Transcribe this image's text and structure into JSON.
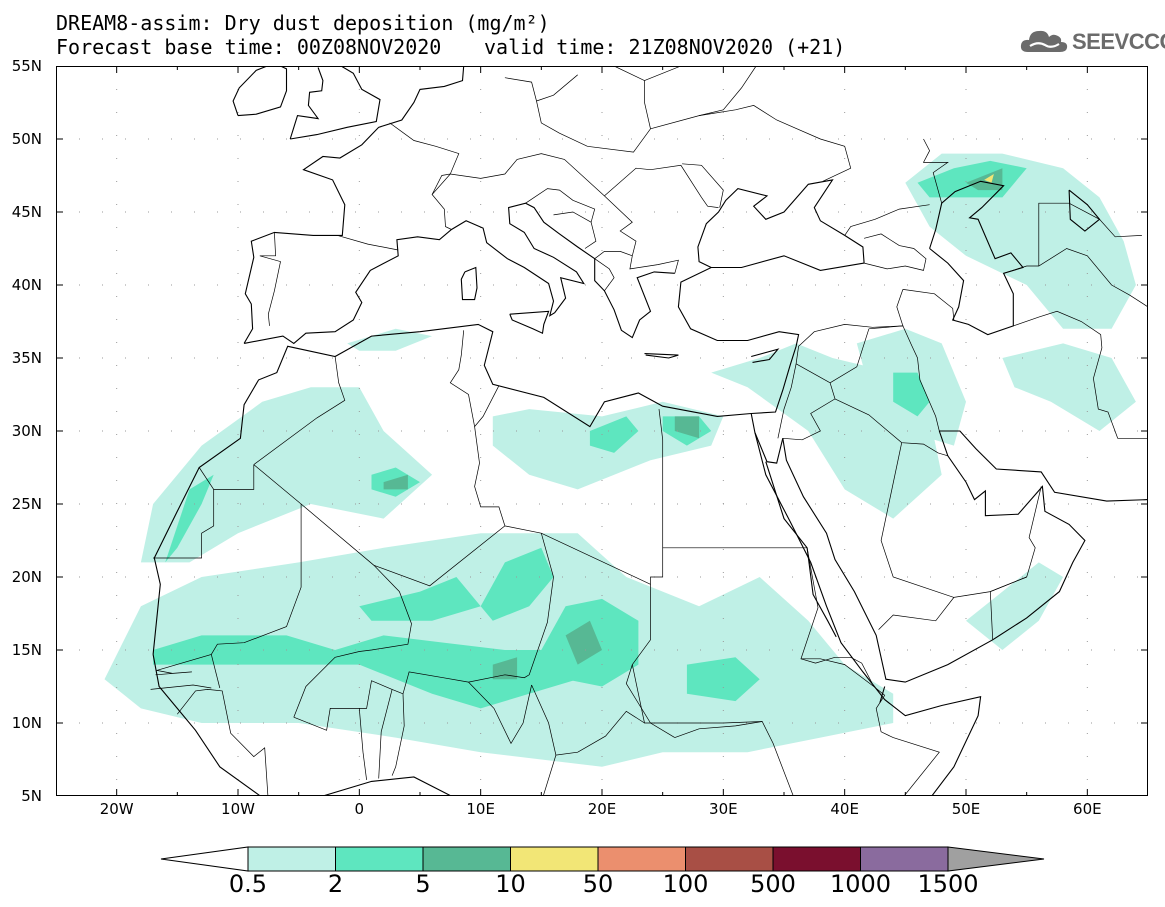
{
  "header": {
    "title_line1": "DREAM8-assim: Dry dust deposition (mg/m²)",
    "title_line2": "Forecast base time: 00Z08NOV2020",
    "title_line2_right": "valid time: 21Z08NOV2020 (+21)"
  },
  "logo": {
    "text": "SEEVCCC",
    "icon": "cloud-icon"
  },
  "map": {
    "projection": "lat-lon",
    "lon_range": [
      -25,
      65
    ],
    "lat_range": [
      5,
      55
    ],
    "lat_labels": [
      "55N",
      "50N",
      "45N",
      "40N",
      "35N",
      "30N",
      "25N",
      "20N",
      "15N",
      "10N",
      "5N"
    ],
    "lon_labels": [
      "20W",
      "10W",
      "0",
      "10E",
      "20E",
      "30E",
      "40E",
      "50E",
      "60E"
    ],
    "background": "#ffffff",
    "coastline_color": "#000000",
    "gridline_style": "dotted"
  },
  "colorbar": {
    "labels": [
      "0.5",
      "2",
      "5",
      "10",
      "50",
      "100",
      "500",
      "1000",
      "1500"
    ],
    "colors": [
      "#bff0e6",
      "#5ee6bf",
      "#57b894",
      "#f2e676",
      "#eb8f6e",
      "#a84f45",
      "#7a0f2e",
      "#8a6b9e"
    ],
    "over_color": "#a0a0a0",
    "under_color": "#ffffff"
  },
  "chart_data": {
    "type": "heatmap",
    "title": "DREAM8-assim: Dry dust deposition (mg/m²)",
    "xlabel": "",
    "ylabel": "",
    "xlim": [
      -25,
      65
    ],
    "ylim": [
      5,
      55
    ],
    "levels": [
      0.5,
      2,
      5,
      10,
      50,
      100,
      500,
      1000,
      1500
    ],
    "regions": [
      {
        "level": 0.5,
        "lon_lat": [
          [
            -21,
            13
          ],
          [
            -18,
            18
          ],
          [
            -13,
            20
          ],
          [
            -5,
            21
          ],
          [
            2,
            22
          ],
          [
            10,
            23
          ],
          [
            18,
            23
          ],
          [
            22,
            20
          ],
          [
            28,
            18
          ],
          [
            33,
            20
          ],
          [
            37,
            17
          ],
          [
            40,
            14
          ],
          [
            44,
            12
          ],
          [
            44,
            10
          ],
          [
            38,
            9
          ],
          [
            32,
            8
          ],
          [
            25,
            8
          ],
          [
            20,
            7
          ],
          [
            10,
            8
          ],
          [
            3,
            9
          ],
          [
            -5,
            10
          ],
          [
            -13,
            10
          ],
          [
            -18,
            11
          ]
        ]
      },
      {
        "level": 0.5,
        "lon_lat": [
          [
            -18,
            21
          ],
          [
            -17,
            25
          ],
          [
            -13,
            29
          ],
          [
            -8,
            32
          ],
          [
            -4,
            33
          ],
          [
            0,
            33
          ],
          [
            2,
            30
          ],
          [
            6,
            27
          ],
          [
            2,
            24
          ],
          [
            -4,
            25
          ],
          [
            -10,
            23
          ],
          [
            -14,
            21
          ]
        ]
      },
      {
        "level": 0.5,
        "lon_lat": [
          [
            11,
            31
          ],
          [
            14,
            31.5
          ],
          [
            20,
            31
          ],
          [
            25,
            32
          ],
          [
            30,
            31
          ],
          [
            29,
            29
          ],
          [
            24,
            28
          ],
          [
            18,
            26
          ],
          [
            14,
            27
          ],
          [
            11,
            29
          ]
        ]
      },
      {
        "level": 0.5,
        "lon_lat": [
          [
            29,
            34
          ],
          [
            33,
            35
          ],
          [
            36,
            36
          ],
          [
            39,
            35
          ],
          [
            44,
            34
          ],
          [
            47,
            31
          ],
          [
            48,
            27
          ],
          [
            44,
            24
          ],
          [
            40,
            26
          ],
          [
            37,
            30
          ],
          [
            32,
            33
          ]
        ]
      },
      {
        "level": 0.5,
        "lon_lat": [
          [
            41,
            36
          ],
          [
            45,
            37
          ],
          [
            48,
            36
          ],
          [
            50,
            32
          ],
          [
            49,
            29
          ],
          [
            45,
            30
          ],
          [
            42,
            33
          ]
        ]
      },
      {
        "level": 0.5,
        "lon_lat": [
          [
            53,
            35
          ],
          [
            58,
            36
          ],
          [
            62,
            35
          ],
          [
            64,
            32
          ],
          [
            61,
            30
          ],
          [
            57,
            32
          ],
          [
            54,
            33
          ]
        ]
      },
      {
        "level": 0.5,
        "lon_lat": [
          [
            45,
            47
          ],
          [
            48,
            49
          ],
          [
            53,
            49
          ],
          [
            58,
            48
          ],
          [
            61,
            46
          ],
          [
            63,
            43
          ],
          [
            64,
            40
          ],
          [
            62,
            37
          ],
          [
            58,
            37
          ],
          [
            55,
            40
          ],
          [
            50,
            42
          ],
          [
            47,
            44
          ]
        ]
      },
      {
        "level": 0.5,
        "lon_lat": [
          [
            50,
            17
          ],
          [
            53,
            19
          ],
          [
            56,
            21
          ],
          [
            58,
            20
          ],
          [
            56,
            17
          ],
          [
            53,
            15
          ]
        ]
      },
      {
        "level": 0.5,
        "lon_lat": [
          [
            -1,
            36
          ],
          [
            3,
            37
          ],
          [
            6,
            36.5
          ],
          [
            3,
            35.5
          ],
          [
            0,
            35.5
          ]
        ]
      },
      {
        "level": 2,
        "lon_lat": [
          [
            -17,
            15
          ],
          [
            -13,
            16
          ],
          [
            -6,
            16
          ],
          [
            -2,
            15
          ],
          [
            2,
            16
          ],
          [
            7,
            15.5
          ],
          [
            12,
            15
          ],
          [
            16,
            15
          ],
          [
            18,
            13
          ],
          [
            14,
            12
          ],
          [
            10,
            11
          ],
          [
            6,
            12
          ],
          [
            0,
            14
          ],
          [
            -6,
            14
          ],
          [
            -12,
            14
          ],
          [
            -17,
            14
          ]
        ]
      },
      {
        "level": 2,
        "lon_lat": [
          [
            0,
            18
          ],
          [
            5,
            19
          ],
          [
            8,
            20
          ],
          [
            10,
            18
          ],
          [
            6,
            17
          ],
          [
            1,
            17
          ]
        ]
      },
      {
        "level": 2,
        "lon_lat": [
          [
            10,
            18
          ],
          [
            12,
            21
          ],
          [
            15,
            22
          ],
          [
            16,
            20
          ],
          [
            14,
            18
          ],
          [
            11,
            17
          ]
        ]
      },
      {
        "level": 2,
        "lon_lat": [
          [
            17,
            18
          ],
          [
            20,
            18.5
          ],
          [
            23,
            17
          ],
          [
            23,
            14
          ],
          [
            20,
            12.5
          ],
          [
            17,
            13
          ],
          [
            15,
            15
          ]
        ]
      },
      {
        "level": 2,
        "lon_lat": [
          [
            -16,
            21
          ],
          [
            -14,
            26
          ],
          [
            -12,
            27
          ],
          [
            -13,
            25
          ],
          [
            -15,
            22
          ]
        ]
      },
      {
        "level": 2,
        "lon_lat": [
          [
            1,
            27
          ],
          [
            3,
            27.5
          ],
          [
            5,
            26.5
          ],
          [
            3,
            25.5
          ],
          [
            1,
            26
          ]
        ]
      },
      {
        "level": 2,
        "lon_lat": [
          [
            19,
            30
          ],
          [
            22,
            31
          ],
          [
            23,
            30
          ],
          [
            21,
            28.5
          ],
          [
            19,
            29
          ]
        ]
      },
      {
        "level": 2,
        "lon_lat": [
          [
            25,
            31
          ],
          [
            28,
            31
          ],
          [
            29,
            30
          ],
          [
            27,
            29
          ],
          [
            25,
            30
          ]
        ]
      },
      {
        "level": 2,
        "lon_lat": [
          [
            27,
            14
          ],
          [
            31,
            14.5
          ],
          [
            33,
            13
          ],
          [
            31,
            11.5
          ],
          [
            27,
            12
          ]
        ]
      },
      {
        "level": 2,
        "lon_lat": [
          [
            46,
            47
          ],
          [
            49,
            48
          ],
          [
            52,
            48.5
          ],
          [
            55,
            48
          ],
          [
            53,
            46
          ],
          [
            50,
            46
          ],
          [
            47,
            46
          ]
        ]
      },
      {
        "level": 2,
        "lon_lat": [
          [
            44,
            34
          ],
          [
            46,
            34
          ],
          [
            47,
            32
          ],
          [
            46,
            31
          ],
          [
            44,
            32
          ]
        ]
      },
      {
        "level": 5,
        "lon_lat": [
          [
            17,
            16
          ],
          [
            19,
            17
          ],
          [
            20,
            15
          ],
          [
            18,
            14
          ]
        ]
      },
      {
        "level": 5,
        "lon_lat": [
          [
            11,
            14
          ],
          [
            13,
            14.5
          ],
          [
            13,
            13
          ],
          [
            11,
            13
          ]
        ]
      },
      {
        "level": 5,
        "lon_lat": [
          [
            2,
            26.5
          ],
          [
            4,
            27
          ],
          [
            4,
            26
          ],
          [
            2,
            26
          ]
        ]
      },
      {
        "level": 5,
        "lon_lat": [
          [
            26,
            31
          ],
          [
            28,
            31
          ],
          [
            28,
            29.5
          ],
          [
            26,
            30
          ]
        ]
      },
      {
        "level": 5,
        "lon_lat": [
          [
            50,
            47
          ],
          [
            53,
            48
          ],
          [
            53,
            46.5
          ],
          [
            51,
            46.5
          ]
        ]
      },
      {
        "level": 10,
        "lon_lat": [
          [
            51.5,
            47.2
          ],
          [
            52.3,
            47.6
          ],
          [
            52.1,
            47.0
          ]
        ]
      }
    ]
  }
}
